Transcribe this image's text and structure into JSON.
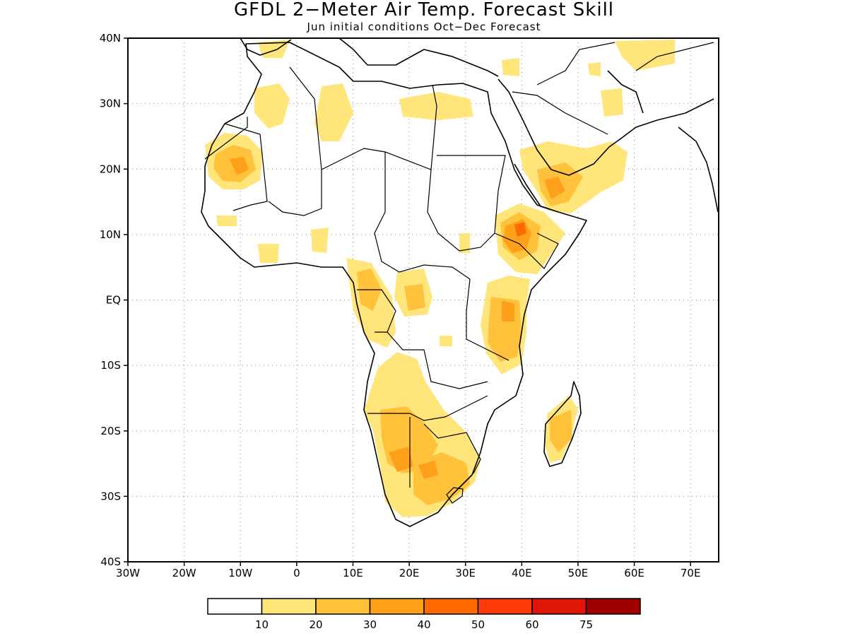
{
  "title": "GFDL 2−Meter Air Temp. Forecast Skill",
  "subtitle": "Jun initial conditions  Oct−Dec Forecast",
  "map": {
    "lon_range": [
      -30,
      75
    ],
    "lat_range": [
      -40,
      40
    ],
    "lat_labels": [
      "40N",
      "30N",
      "20N",
      "10N",
      "EQ",
      "10S",
      "20S",
      "30S",
      "40S"
    ],
    "lon_labels": [
      "30W",
      "20W",
      "10W",
      "0",
      "10E",
      "20E",
      "30E",
      "40E",
      "50E",
      "60E",
      "70E"
    ]
  },
  "legend": {
    "colors": [
      "#ffffff",
      "#ffe57a",
      "#ffc23a",
      "#ffa01a",
      "#ff6a00",
      "#ff3a0a",
      "#dd1608",
      "#a00000"
    ],
    "labels": [
      "10",
      "20",
      "30",
      "40",
      "50",
      "60",
      "75"
    ]
  }
}
